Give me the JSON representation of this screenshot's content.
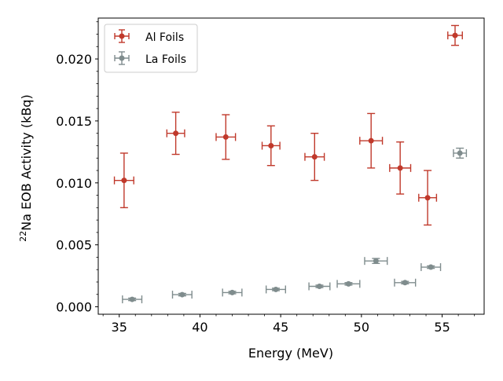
{
  "colors": {
    "al_foils": "#c0392b",
    "la_foils": "#7f8c8d",
    "axis": "#000000",
    "legend_border": "#cccccc",
    "background": "#ffffff"
  },
  "chart_data": {
    "type": "scatter",
    "title": "",
    "xlabel": "Energy (MeV)",
    "ylabel_sup": "22",
    "ylabel_main": "Na EOB Activity (kBq)",
    "xlim": [
      33.7,
      57.6
    ],
    "ylim": [
      -0.0006,
      0.0233
    ],
    "x_ticks": [
      35,
      40,
      45,
      50,
      55
    ],
    "x_tick_labels": [
      "35",
      "40",
      "45",
      "50",
      "55"
    ],
    "y_ticks": [
      0.0,
      0.005,
      0.01,
      0.015,
      0.02
    ],
    "y_tick_labels": [
      "0.000",
      "0.005",
      "0.010",
      "0.015",
      "0.020"
    ],
    "x_minor_step": 1,
    "y_minor_step": 0.001,
    "grid": false,
    "legend_position": "top-left",
    "series": [
      {
        "name": "Al Foils",
        "color_key": "al_foils",
        "x": [
          35.3,
          38.5,
          41.6,
          44.4,
          47.1,
          50.6,
          52.4,
          54.1,
          55.8
        ],
        "y": [
          0.0102,
          0.014,
          0.0137,
          0.013,
          0.0121,
          0.0134,
          0.0112,
          0.0088,
          0.0219
        ],
        "xerr": [
          0.6,
          0.55,
          0.6,
          0.55,
          0.6,
          0.7,
          0.65,
          0.55,
          0.45
        ],
        "yerr": [
          0.0022,
          0.0017,
          0.0018,
          0.0016,
          0.0019,
          0.0022,
          0.0021,
          0.0022,
          0.0008
        ]
      },
      {
        "name": "La Foils",
        "color_key": "la_foils",
        "x": [
          35.8,
          38.9,
          42.0,
          44.7,
          47.4,
          49.2,
          50.9,
          52.7,
          54.3,
          56.1
        ],
        "y": [
          0.0006,
          0.00098,
          0.00115,
          0.0014,
          0.00165,
          0.00185,
          0.0037,
          0.00195,
          0.0032,
          0.0124
        ],
        "xerr": [
          0.6,
          0.6,
          0.6,
          0.6,
          0.65,
          0.7,
          0.7,
          0.65,
          0.6,
          0.4
        ],
        "yerr": [
          0.0001,
          0.0001,
          0.0001,
          0.0001,
          0.0001,
          0.0001,
          0.0002,
          0.0001,
          0.0001,
          0.0004
        ]
      }
    ]
  }
}
